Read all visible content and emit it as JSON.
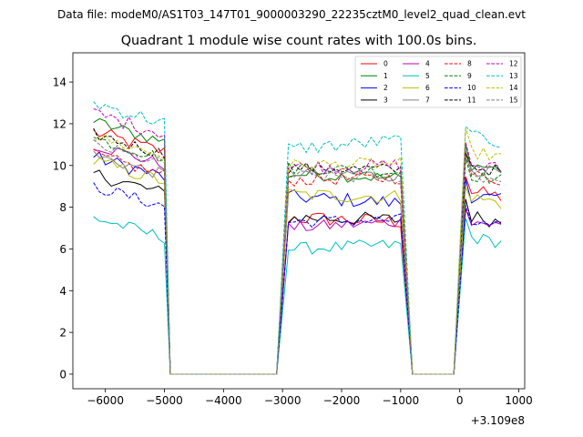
{
  "suptitle": "Data file: modeM0/AS1T03_147T01_9000003290_22235cztM0_level2_quad_clean.evt",
  "chart_data": {
    "type": "line",
    "title": "Quadrant 1 module wise count rates with 100.0s bins.",
    "xlabel": "",
    "ylabel": "",
    "x_offset_label": "+3.109e8",
    "xlim": [
      -6550,
      1100
    ],
    "ylim": [
      -0.7,
      15.4
    ],
    "xticks": [
      -6000,
      -5000,
      -4000,
      -3000,
      -2000,
      -1000,
      0,
      1000
    ],
    "xtick_labels": [
      "−6000",
      "−5000",
      "−4000",
      "−3000",
      "−2000",
      "−1000",
      "0",
      "1000"
    ],
    "yticks": [
      0,
      2,
      4,
      6,
      8,
      10,
      12,
      14
    ],
    "ytick_labels": [
      "0",
      "2",
      "4",
      "6",
      "8",
      "10",
      "12",
      "14"
    ],
    "grid": false,
    "legend_position": "top-right",
    "segments": [
      {
        "start": -6200,
        "step": 100,
        "points": 13
      },
      {
        "start": -4900,
        "step": 100,
        "points": 19
      },
      {
        "start": -2900,
        "step": 100,
        "points": 20
      },
      {
        "start": -800,
        "step": 100,
        "points": 8
      },
      {
        "start": 100,
        "step": 100,
        "points": 7
      }
    ],
    "series": [
      {
        "name": "0",
        "color": "#ff0000",
        "dash": "solid",
        "levels": [
          11.6,
          7.5,
          7.3,
          8.8
        ],
        "fluct": 0.35
      },
      {
        "name": "1",
        "color": "#008000",
        "dash": "solid",
        "levels": [
          12.1,
          9.6,
          9.4,
          10.1
        ],
        "fluct": 0.3
      },
      {
        "name": "2",
        "color": "#0000ff",
        "dash": "solid",
        "levels": [
          10.4,
          8.5,
          8.2,
          8.6
        ],
        "fluct": 0.35
      },
      {
        "name": "3",
        "color": "#000000",
        "dash": "solid",
        "levels": [
          9.6,
          7.5,
          7.4,
          7.6
        ],
        "fluct": 0.35
      },
      {
        "name": "4",
        "color": "#bf00bf",
        "dash": "solid",
        "levels": [
          11.0,
          7.0,
          7.3,
          7.4
        ],
        "fluct": 0.3
      },
      {
        "name": "5",
        "color": "#00bfbf",
        "dash": "solid",
        "levels": [
          7.5,
          6.0,
          6.2,
          6.6
        ],
        "fluct": 0.3
      },
      {
        "name": "6",
        "color": "#bfbf00",
        "dash": "solid",
        "levels": [
          10.2,
          8.6,
          8.5,
          8.5
        ],
        "fluct": 0.35
      },
      {
        "name": "7",
        "color": "#808080",
        "dash": "solid",
        "levels": [
          10.5,
          9.7,
          9.5,
          9.9
        ],
        "fluct": 0.3
      },
      {
        "name": "8",
        "color": "#ff0000",
        "dash": "dashed",
        "levels": [
          10.5,
          9.3,
          9.4,
          9.6
        ],
        "fluct": 0.3
      },
      {
        "name": "9",
        "color": "#008000",
        "dash": "dashed",
        "levels": [
          11.3,
          9.9,
          9.7,
          9.6
        ],
        "fluct": 0.3
      },
      {
        "name": "10",
        "color": "#0000ff",
        "dash": "dashed",
        "levels": [
          9.0,
          7.3,
          7.4,
          7.3
        ],
        "fluct": 0.3
      },
      {
        "name": "11",
        "color": "#000000",
        "dash": "dashed",
        "levels": [
          11.5,
          9.9,
          9.8,
          10.0
        ],
        "fluct": 0.3
      },
      {
        "name": "12",
        "color": "#bf00bf",
        "dash": "dashed",
        "levels": [
          12.5,
          9.9,
          10.0,
          10.1
        ],
        "fluct": 0.35
      },
      {
        "name": "13",
        "color": "#00bfbf",
        "dash": "dashed",
        "levels": [
          13.0,
          10.8,
          11.2,
          11.4
        ],
        "fluct": 0.35
      },
      {
        "name": "14",
        "color": "#bfbf00",
        "dash": "dashed",
        "levels": [
          11.4,
          10.0,
          10.1,
          10.7
        ],
        "fluct": 0.3
      },
      {
        "name": "15",
        "color": "#808080",
        "dash": "dashed",
        "levels": [
          11.0,
          9.5,
          9.4,
          9.6
        ],
        "fluct": 0.3
      }
    ]
  }
}
